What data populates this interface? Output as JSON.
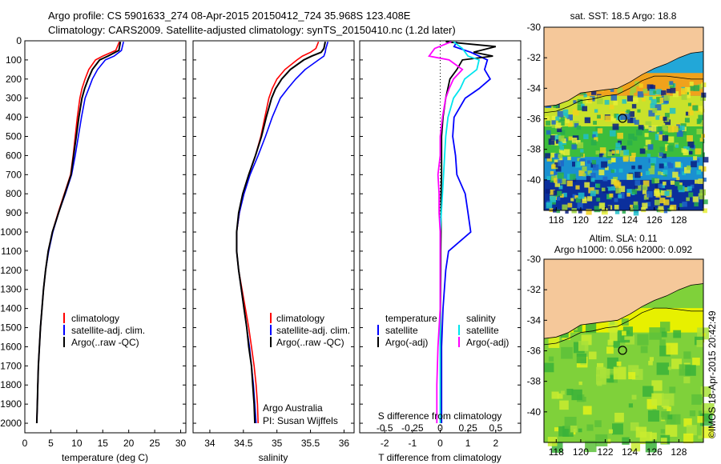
{
  "header": {
    "line1": "Argo profile: CS 5901633_274 08-Apr-2015 20150412_724 35.968S 123.408E",
    "line2": "Climatology: CARS2009. Satellite-adjusted climatology: synTS_20150410.nc (1.2d later)"
  },
  "colors": {
    "climatology": "#ff0000",
    "satellite": "#0000ff",
    "argo": "#000000",
    "sal_satellite": "#00e5ee",
    "sal_argo": "#ff00ff",
    "land": "#f5c89a"
  },
  "chart_data": [
    {
      "type": "line",
      "panel": "temperature",
      "xlabel": "temperature (deg C)",
      "xlim": [
        0,
        31
      ],
      "xticks": [
        "0",
        "5",
        "10",
        "15",
        "20",
        "25",
        "30"
      ],
      "ylim": [
        2050,
        0
      ],
      "yticks": [
        "0",
        "100",
        "200",
        "300",
        "400",
        "500",
        "600",
        "700",
        "800",
        "900",
        "1000",
        "1100",
        "1200",
        "1300",
        "1400",
        "1500",
        "1600",
        "1700",
        "1800",
        "1900",
        "2000"
      ],
      "legend": [
        "climatology",
        "satellite-adj. clim.",
        "Argo(..raw -QC)"
      ],
      "series": [
        {
          "name": "climatology",
          "depth": [
            5,
            50,
            80,
            100,
            150,
            200,
            250,
            300,
            400,
            500,
            600,
            700,
            800,
            900,
            1000,
            1100,
            1200,
            1300,
            1400,
            1500,
            1600,
            1700,
            1800,
            1900,
            2000
          ],
          "values": [
            18.2,
            17.5,
            15.0,
            13.6,
            12.3,
            11.6,
            11.0,
            10.6,
            10.1,
            9.7,
            9.3,
            8.8,
            7.6,
            6.4,
            5.3,
            4.5,
            4.0,
            3.6,
            3.3,
            3.0,
            2.8,
            2.6,
            2.5,
            2.4,
            2.3
          ]
        },
        {
          "name": "satellite-adj. clim.",
          "depth": [
            5,
            50,
            80,
            100,
            150,
            200,
            250,
            300,
            400,
            500,
            600,
            700,
            800,
            900,
            1000,
            1100,
            1200,
            1300,
            1400,
            1500,
            1600,
            1700,
            1800,
            1900,
            2000
          ],
          "values": [
            19.0,
            18.6,
            17.2,
            15.5,
            14.0,
            13.0,
            12.3,
            11.6,
            10.9,
            10.3,
            9.7,
            9.0,
            7.8,
            6.5,
            5.4,
            4.6,
            4.0,
            3.6,
            3.3,
            3.0,
            2.8,
            2.6,
            2.5,
            2.4,
            2.3
          ]
        },
        {
          "name": "Argo(..raw -QC)",
          "depth": [
            5,
            50,
            80,
            100,
            150,
            200,
            250,
            300,
            400,
            500,
            600,
            700,
            800,
            900,
            1000,
            1100,
            1200,
            1300,
            1400,
            1500,
            1600,
            1700,
            1800,
            1900,
            2000
          ],
          "values": [
            18.4,
            18.1,
            16.0,
            14.4,
            13.0,
            12.2,
            11.5,
            11.0,
            10.4,
            9.9,
            9.4,
            8.9,
            7.7,
            6.5,
            5.3,
            4.5,
            4.0,
            3.6,
            3.3,
            3.0,
            2.8,
            2.6,
            2.5,
            2.4,
            2.3
          ]
        }
      ]
    },
    {
      "type": "line",
      "panel": "salinity",
      "xlabel": "salinity",
      "xlim": [
        33.75,
        36.15
      ],
      "xticks": [
        "34",
        "34.5",
        "35",
        "35.5",
        "36"
      ],
      "ylim": [
        2050,
        0
      ],
      "legend": [
        "climatology",
        "satellite-adj. clim.",
        "Argo(..raw -QC)"
      ],
      "annotation": [
        "Argo Australia",
        "PI: Susan Wijffels"
      ],
      "series": [
        {
          "name": "climatology",
          "depth": [
            5,
            40,
            60,
            80,
            100,
            150,
            200,
            250,
            300,
            400,
            500,
            600,
            700,
            800,
            900,
            1000,
            1100,
            1200,
            1300,
            1400,
            1500,
            1600,
            1700,
            1800,
            1900,
            2000
          ],
          "values": [
            35.62,
            35.58,
            35.5,
            35.38,
            35.3,
            35.12,
            35.0,
            34.93,
            34.88,
            34.82,
            34.76,
            34.68,
            34.58,
            34.5,
            34.44,
            34.4,
            34.4,
            34.43,
            34.48,
            34.53,
            34.58,
            34.62,
            34.66,
            34.69,
            34.71,
            34.72
          ]
        },
        {
          "name": "satellite-adj. clim.",
          "depth": [
            5,
            40,
            60,
            80,
            100,
            150,
            200,
            250,
            300,
            400,
            500,
            600,
            700,
            800,
            900,
            1000,
            1100,
            1200,
            1300,
            1400,
            1500,
            1600,
            1700,
            1800,
            1900,
            2000
          ],
          "values": [
            35.76,
            35.73,
            35.72,
            35.7,
            35.62,
            35.42,
            35.28,
            35.16,
            35.05,
            34.93,
            34.83,
            34.72,
            34.6,
            34.51,
            34.44,
            34.4,
            34.4,
            34.43,
            34.47,
            34.51,
            34.55,
            34.59,
            34.62,
            34.65,
            34.67,
            34.69
          ]
        },
        {
          "name": "Argo(..raw -QC)",
          "depth": [
            5,
            40,
            60,
            80,
            100,
            150,
            200,
            250,
            300,
            400,
            500,
            600,
            700,
            800,
            900,
            1000,
            1100,
            1200,
            1300,
            1400,
            1500,
            1600,
            1700,
            1800,
            1900,
            2000
          ],
          "values": [
            35.72,
            35.7,
            35.66,
            35.52,
            35.4,
            35.2,
            35.07,
            34.98,
            34.92,
            34.84,
            34.77,
            34.68,
            34.58,
            34.49,
            34.43,
            34.4,
            34.4,
            34.43,
            34.47,
            34.51,
            34.55,
            34.58,
            34.62,
            34.64,
            34.66,
            34.67
          ]
        }
      ]
    },
    {
      "type": "line",
      "panel": "difference from climatology",
      "xlabel": "T difference from climatology",
      "xlim": [
        -2.9,
        2.9
      ],
      "xticks": [
        "-2",
        "-1",
        "0",
        "1",
        "2"
      ],
      "top_xlabel": "S difference from climatology",
      "top_xticks": [
        "-0.5",
        "-0.25",
        "0",
        "0.25",
        "0.5"
      ],
      "ylim": [
        2050,
        0
      ],
      "legend": {
        "temperature_title": "temperature",
        "salinity_title": "salinity",
        "items": [
          "satellite",
          "Argo(-adj)",
          "satellite",
          "Argo(-adj)"
        ]
      },
      "series": [
        {
          "name": "satellite",
          "quantity": "temperature",
          "depth": [
            5,
            30,
            60,
            100,
            150,
            200,
            250,
            300,
            400,
            500,
            600,
            700,
            800,
            900,
            1000,
            1100,
            1200,
            1400,
            1600,
            1800,
            2000
          ],
          "values": [
            0.6,
            0.5,
            1.1,
            1.7,
            1.6,
            1.8,
            1.4,
            0.9,
            0.5,
            0.45,
            0.55,
            0.6,
            0.9,
            1.0,
            1.1,
            0.3,
            0.2,
            0.1,
            0.05,
            0.05,
            0.05
          ]
        },
        {
          "name": "Argo(-adj)",
          "quantity": "temperature",
          "depth": [
            5,
            30,
            60,
            80,
            100,
            150,
            200,
            300,
            400,
            500,
            600,
            700,
            800,
            900,
            1000,
            1100,
            1200,
            1400,
            1600,
            1800,
            2000
          ],
          "values": [
            0.2,
            2.0,
            1.2,
            1.9,
            0.8,
            0.6,
            0.35,
            0.2,
            0.1,
            0.05,
            0.05,
            0.05,
            0.03,
            0.03,
            0.03,
            0.02,
            0.02,
            0.01,
            0.01,
            0.01,
            0.01
          ]
        },
        {
          "name": "satellite",
          "quantity": "salinity",
          "depth": [
            5,
            40,
            80,
            100,
            150,
            200,
            250,
            300,
            400,
            500,
            600,
            700,
            800,
            900,
            1000,
            1100,
            1200,
            1400,
            1600,
            1800,
            2000
          ],
          "values": [
            0.12,
            0.2,
            0.25,
            0.35,
            0.33,
            0.22,
            0.18,
            0.12,
            0.07,
            0.05,
            0.04,
            0.03,
            0.02,
            0.01,
            0.0,
            0.0,
            0.0,
            0.0,
            0.0,
            0.0,
            0.0
          ]
        },
        {
          "name": "Argo(-adj)",
          "quantity": "salinity",
          "depth": [
            5,
            40,
            80,
            100,
            150,
            200,
            250,
            300,
            400,
            500,
            600,
            700,
            800,
            900,
            1000,
            1100,
            1200,
            1400,
            1600,
            1800,
            2000
          ],
          "values": [
            0.1,
            -0.05,
            -0.1,
            0.08,
            0.2,
            0.12,
            0.08,
            0.05,
            0.02,
            0.0,
            0.0,
            -0.02,
            -0.01,
            -0.01,
            0.0,
            0.0,
            0.0,
            0.0,
            -0.02,
            -0.03,
            -0.03
          ]
        }
      ]
    },
    {
      "type": "heatmap",
      "panel": "sst map",
      "title": "sat. SST: 18.5  Argo: 18.8",
      "xlim": [
        117,
        130
      ],
      "ylim": [
        -42,
        -30
      ],
      "xticks": [
        "118",
        "120",
        "122",
        "124",
        "126",
        "128"
      ],
      "yticks": [
        "-30",
        "-32",
        "-34",
        "-36",
        "-38",
        "-40"
      ],
      "profile_location": {
        "lon": 123.408,
        "lat": -35.968
      }
    },
    {
      "type": "heatmap",
      "panel": "sla map",
      "title_line1": "Altim. SLA: 0.11",
      "title_line2": "Argo h1000: 0.056 h2000: 0.092",
      "xlim": [
        117,
        130
      ],
      "ylim": [
        -42,
        -30
      ],
      "xticks": [
        "118",
        "120",
        "122",
        "124",
        "126",
        "128"
      ],
      "yticks": [
        "-30",
        "-32",
        "-34",
        "-36",
        "-38",
        "-40"
      ],
      "profile_location": {
        "lon": 123.408,
        "lat": -35.968
      }
    }
  ],
  "credit": "©IMOS 18-Apr-2015 20:42:49"
}
